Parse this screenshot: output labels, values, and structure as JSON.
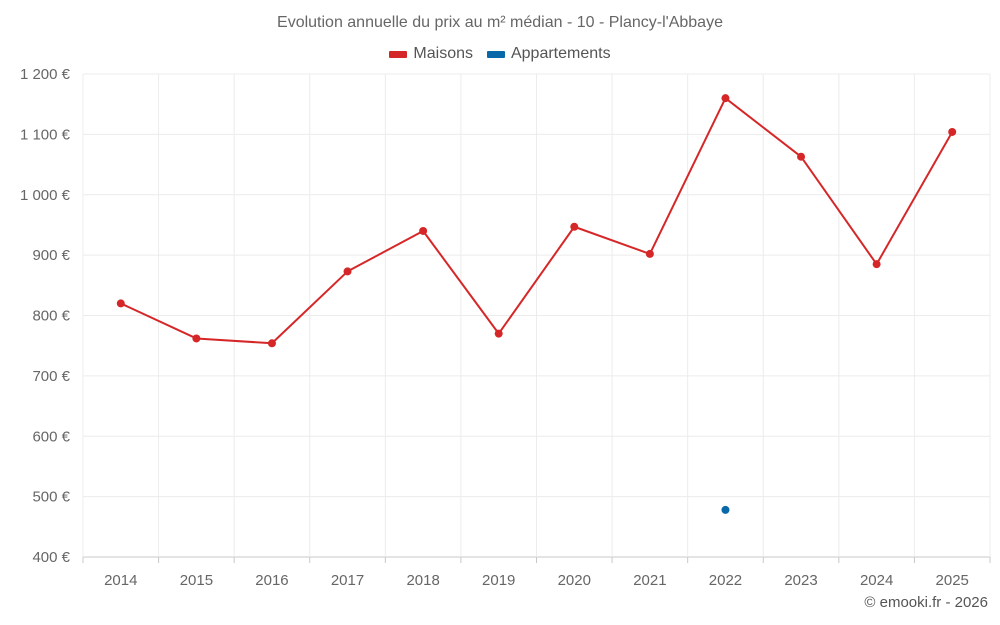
{
  "chart_data": {
    "type": "line",
    "title": "Evolution annuelle du prix au m² médian - 10 - Plancy-l'Abbaye",
    "categories": [
      "2014",
      "2015",
      "2016",
      "2017",
      "2018",
      "2019",
      "2020",
      "2021",
      "2022",
      "2023",
      "2024",
      "2025"
    ],
    "series": [
      {
        "name": "Maisons",
        "color": "#d62728",
        "values": [
          820,
          762,
          754,
          873,
          940,
          770,
          947,
          902,
          1160,
          1063,
          885,
          1104
        ]
      },
      {
        "name": "Appartements",
        "color": "#0868a8",
        "values": [
          null,
          null,
          null,
          null,
          null,
          null,
          null,
          null,
          478,
          null,
          null,
          null
        ]
      }
    ],
    "ylim": [
      400,
      1200
    ],
    "yticks": [
      400,
      500,
      600,
      700,
      800,
      900,
      1000,
      1100,
      1200
    ],
    "ytick_labels": [
      "400 €",
      "500 €",
      "600 €",
      "700 €",
      "800 €",
      "900 €",
      "1 000 €",
      "1 100 €",
      "1 200 €"
    ],
    "grid": true,
    "legend": "top-center",
    "xlabel": "",
    "ylabel": ""
  },
  "footer": {
    "credit": "© emooki.fr - 2026"
  }
}
